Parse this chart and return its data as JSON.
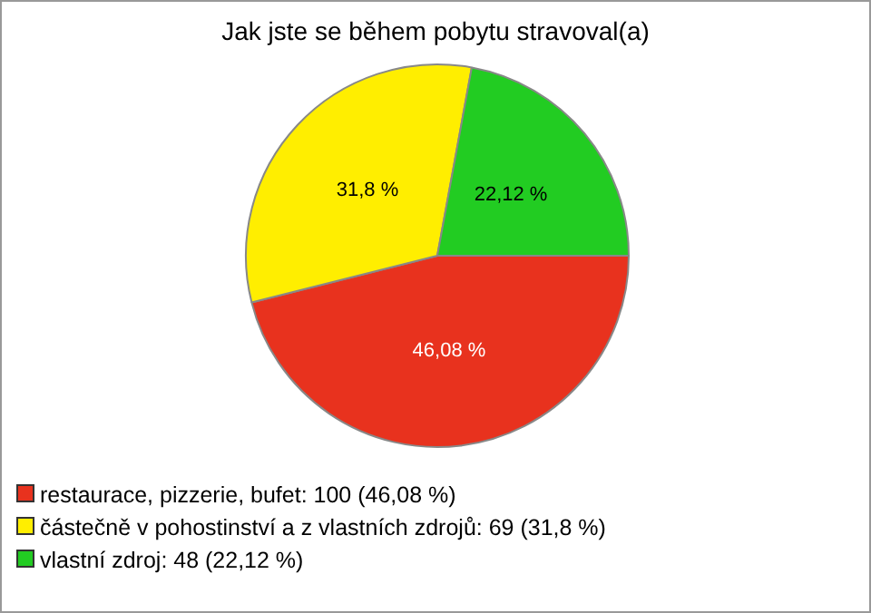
{
  "chart_data": {
    "type": "pie",
    "title": "Jak jste se během pobytu stravoval(a)",
    "categories": [
      "restaurace, pizzerie, bufet: 100 (46,08 %)",
      "částečně v pohostinství a z vlastních zdrojů: 69 (31,8 %)",
      "vlastní zdroj: 48 (22,12 %)"
    ],
    "values": [
      46.08,
      31.8,
      22.12
    ],
    "value_labels": [
      "46,08 %",
      "31,8 %",
      "22,12 %"
    ],
    "colors": [
      "#e8321e",
      "#ffee00",
      "#22cc22"
    ],
    "legend": "bottom left"
  }
}
